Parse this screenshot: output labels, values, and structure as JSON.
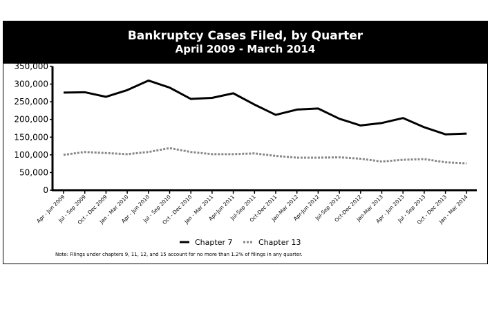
{
  "chart_data": {
    "type": "line",
    "title": "Bankruptcy Cases Filed, by Quarter",
    "subtitle": "April 2009 - March 2014",
    "categories": [
      "Apr - Jun 2009",
      "Jul - Sep 2009",
      "Oct - Dec 2009",
      "Jan - Mar 2010",
      "Apr - Jun 2010",
      "Jul - Sep 2010",
      "Oct - Dec 2010",
      "Jan - Mar 2011",
      "Apr-Jun 2011",
      "Jul-Sep 2011",
      "Oct-Dec 2011",
      "Jan-Mar 2012",
      "Apr-Jun 2012",
      "Jul-Sep 2012",
      "Oct-Dec 2012",
      "Jan-Mar 2013",
      "Apr - Jun 2013",
      "Jul - Sep 2013",
      "Oct - Dec 2013",
      "Jan - Mar 2014"
    ],
    "series": [
      {
        "name": "Chapter 7",
        "color": "#000000",
        "style": "solid",
        "values": [
          276000,
          277000,
          264000,
          283000,
          310000,
          290000,
          258000,
          261000,
          274000,
          242000,
          213000,
          228000,
          231000,
          202000,
          183000,
          190000,
          204000,
          178000,
          158000,
          160000
        ]
      },
      {
        "name": "Chapter 13",
        "color": "#888888",
        "style": "dotted",
        "values": [
          100000,
          108000,
          105000,
          102000,
          108000,
          119000,
          108000,
          102000,
          102000,
          104000,
          97000,
          92000,
          92000,
          93000,
          89000,
          81000,
          86000,
          88000,
          79000,
          76000
        ]
      }
    ],
    "yticks": [
      "0",
      "50,000",
      "100,000",
      "150,000",
      "200,000",
      "250,000",
      "300,000",
      "350,000"
    ],
    "ylim": [
      0,
      350000
    ],
    "grid": false,
    "legend": "bottom",
    "note": "Note: Filings under chapters 9, 11, 12, and 15 account for no more than 1.2% of filings in any quarter."
  }
}
